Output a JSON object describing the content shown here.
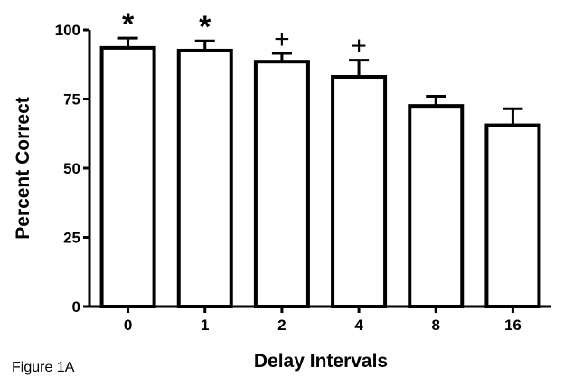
{
  "chart_data": {
    "type": "bar",
    "xlabel": "Delay Intervals",
    "ylabel": "Percent Correct",
    "categories": [
      "0",
      "1",
      "2",
      "4",
      "8",
      "16"
    ],
    "values": [
      93.5,
      92.5,
      88.5,
      83,
      72.5,
      65.5
    ],
    "errors": [
      3.5,
      3.5,
      3,
      6,
      3.5,
      6
    ],
    "annotations": [
      "*",
      "*",
      "+",
      "+",
      "",
      ""
    ],
    "ylim": [
      0,
      100
    ],
    "yticks": [
      "0",
      "25",
      "50",
      "75",
      "100"
    ],
    "grid": false,
    "legend": "none"
  },
  "caption": "Figure 1A"
}
